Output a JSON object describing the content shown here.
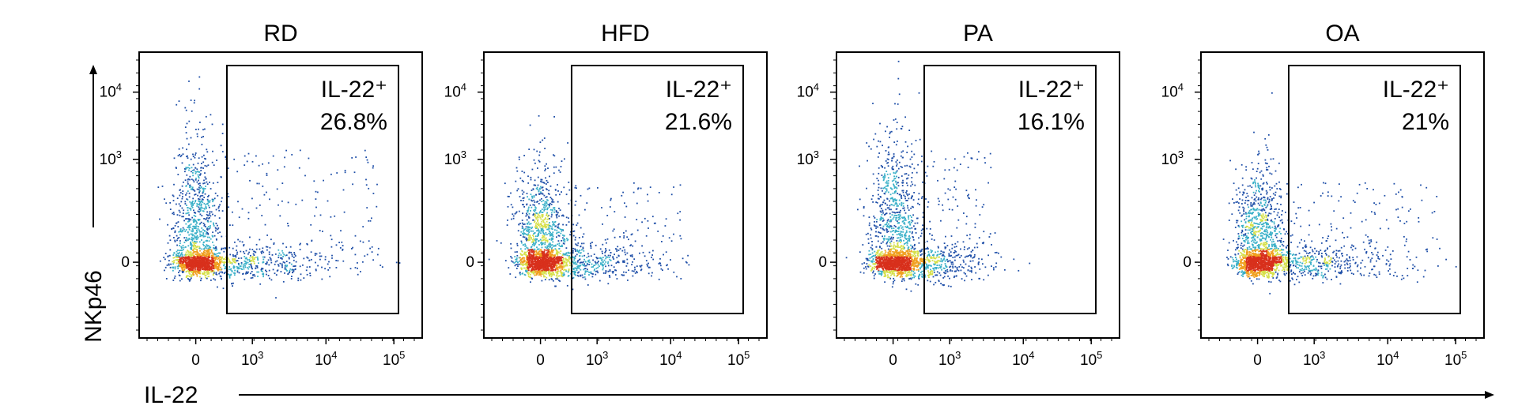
{
  "figure": {
    "y_axis_label": "NKp46",
    "x_axis_label": "IL-22"
  },
  "chart_data": [
    {
      "type": "scatter",
      "title": "RD",
      "xlabel": "IL-22",
      "ylabel": "NKp46",
      "x_scale": "biexponential",
      "y_scale": "biexponential",
      "x_ticks": [
        "0",
        "10^3",
        "10^4",
        "10^5"
      ],
      "y_ticks": [
        "0",
        "10^3",
        "10^4"
      ],
      "gate": {
        "name": "IL-22+",
        "percent": 26.8,
        "label": "IL-22⁺",
        "value_label": "26.8%"
      },
      "density": {
        "center_x": 0,
        "center_y": 0,
        "vertical_spread": "high",
        "horizontal_tail": "long"
      }
    },
    {
      "type": "scatter",
      "title": "HFD",
      "xlabel": "IL-22",
      "ylabel": "NKp46",
      "x_scale": "biexponential",
      "y_scale": "biexponential",
      "x_ticks": [
        "0",
        "10^3",
        "10^4",
        "10^5"
      ],
      "y_ticks": [
        "0",
        "10^3",
        "10^4"
      ],
      "gate": {
        "name": "IL-22+",
        "percent": 21.6,
        "label": "IL-22⁺",
        "value_label": "21.6%"
      },
      "density": {
        "center_x": 0,
        "center_y": 0,
        "vertical_spread": "medium",
        "horizontal_tail": "medium"
      }
    },
    {
      "type": "scatter",
      "title": "PA",
      "xlabel": "IL-22",
      "ylabel": "NKp46",
      "x_scale": "biexponential",
      "y_scale": "biexponential",
      "x_ticks": [
        "0",
        "10^3",
        "10^4",
        "10^5"
      ],
      "y_ticks": [
        "0",
        "10^3",
        "10^4"
      ],
      "gate": {
        "name": "IL-22+",
        "percent": 16.1,
        "label": "IL-22⁺",
        "value_label": "16.1%"
      },
      "density": {
        "center_x": 0,
        "center_y": 0,
        "vertical_spread": "high",
        "horizontal_tail": "short"
      }
    },
    {
      "type": "scatter",
      "title": "OA",
      "xlabel": "IL-22",
      "ylabel": "NKp46",
      "x_scale": "biexponential",
      "y_scale": "biexponential",
      "x_ticks": [
        "0",
        "10^3",
        "10^4",
        "10^5"
      ],
      "y_ticks": [
        "0",
        "10^3",
        "10^4"
      ],
      "gate": {
        "name": "IL-22+",
        "percent": 21,
        "label": "IL-22⁺",
        "value_label": "21%"
      },
      "density": {
        "center_x": 0,
        "center_y": 0,
        "vertical_spread": "medium",
        "horizontal_tail": "long"
      }
    }
  ],
  "colors": {
    "low": "#1f4fa8",
    "mid": "#3ab0c8",
    "midhigh": "#d6e04a",
    "high": "#f0a020",
    "peak": "#d8301c"
  }
}
